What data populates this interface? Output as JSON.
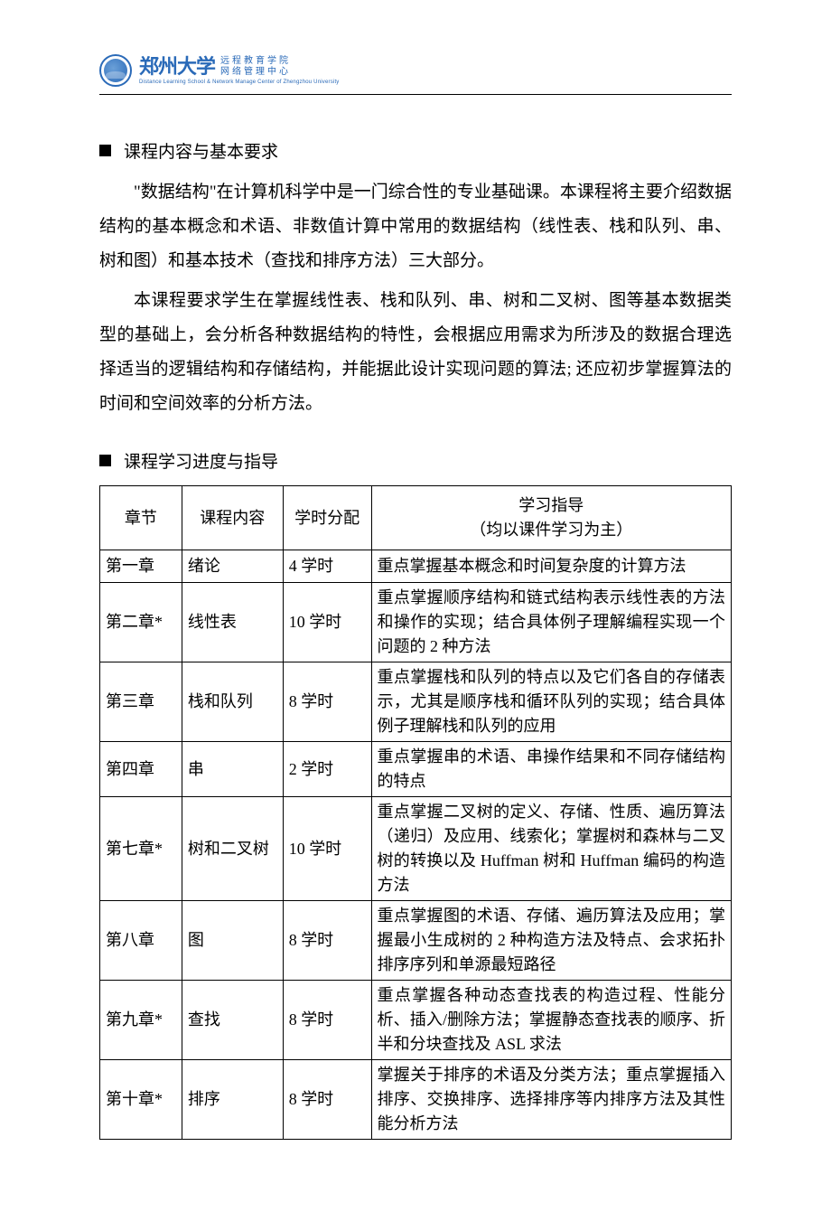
{
  "header": {
    "university": "郑州大学",
    "subtitle_line1": "远程教育学院",
    "subtitle_line2": "网络管理中心",
    "english": "Distance Learning School & Network Manage Center of Zhengzhou University"
  },
  "section1": {
    "title": "课程内容与基本要求",
    "para1": "\"数据结构\"在计算机科学中是一门综合性的专业基础课。本课程将主要介绍数据结构的基本概念和术语、非数值计算中常用的数据结构（线性表、栈和队列、串、树和图）和基本技术（查找和排序方法）三大部分。",
    "para2": "本课程要求学生在掌握线性表、栈和队列、串、树和二叉树、图等基本数据类型的基础上，会分析各种数据结构的特性，会根据应用需求为所涉及的数据合理选择适当的逻辑结构和存储结构，并能据此设计实现问题的算法; 还应初步掌握算法的时间和空间效率的分析方法。"
  },
  "section2": {
    "title": "课程学习进度与指导",
    "table": {
      "columns": {
        "chapter": "章节",
        "content": "课程内容",
        "hours": "学时分配",
        "guide_main": "学习指导",
        "guide_sub": "（均以课件学习为主）"
      },
      "rows": [
        {
          "chapter": "第一章",
          "content": "绪论",
          "hours": "4 学时",
          "guide": "重点掌握基本概念和时间复杂度的计算方法"
        },
        {
          "chapter": "第二章*",
          "content": "线性表",
          "hours": "10 学时",
          "guide": "重点掌握顺序结构和链式结构表示线性表的方法和操作的实现；结合具体例子理解编程实现一个问题的 2 种方法"
        },
        {
          "chapter": "第三章",
          "content": "栈和队列",
          "hours": "8 学时",
          "guide": "重点掌握栈和队列的特点以及它们各自的存储表示，尤其是顺序栈和循环队列的实现；结合具体例子理解栈和队列的应用"
        },
        {
          "chapter": "第四章",
          "content": "串",
          "hours": "2 学时",
          "guide": "重点掌握串的术语、串操作结果和不同存储结构的特点"
        },
        {
          "chapter": "第七章*",
          "content": "树和二叉树",
          "hours": "10 学时",
          "guide": "重点掌握二叉树的定义、存储、性质、遍历算法（递归）及应用、线索化；掌握树和森林与二叉树的转换以及 Huffman 树和 Huffman 编码的构造方法"
        },
        {
          "chapter": "第八章",
          "content": "图",
          "hours": "8 学时",
          "guide": "重点掌握图的术语、存储、遍历算法及应用；掌握最小生成树的 2 种构造方法及特点、会求拓扑排序序列和单源最短路径"
        },
        {
          "chapter": "第九章*",
          "content": "查找",
          "hours": "8 学时",
          "guide": "重点掌握各种动态查找表的构造过程、性能分析、插入/删除方法；掌握静态查找表的顺序、折半和分块查找及 ASL 求法"
        },
        {
          "chapter": "第十章*",
          "content": "排序",
          "hours": "8 学时",
          "guide": "掌握关于排序的术语及分类方法；重点掌握插入排序、交换排序、选择排序等内排序方法及其性能分析方法"
        }
      ]
    }
  },
  "colors": {
    "text": "#000000",
    "brand": "#2a6ab8",
    "background": "#ffffff",
    "border": "#000000"
  }
}
